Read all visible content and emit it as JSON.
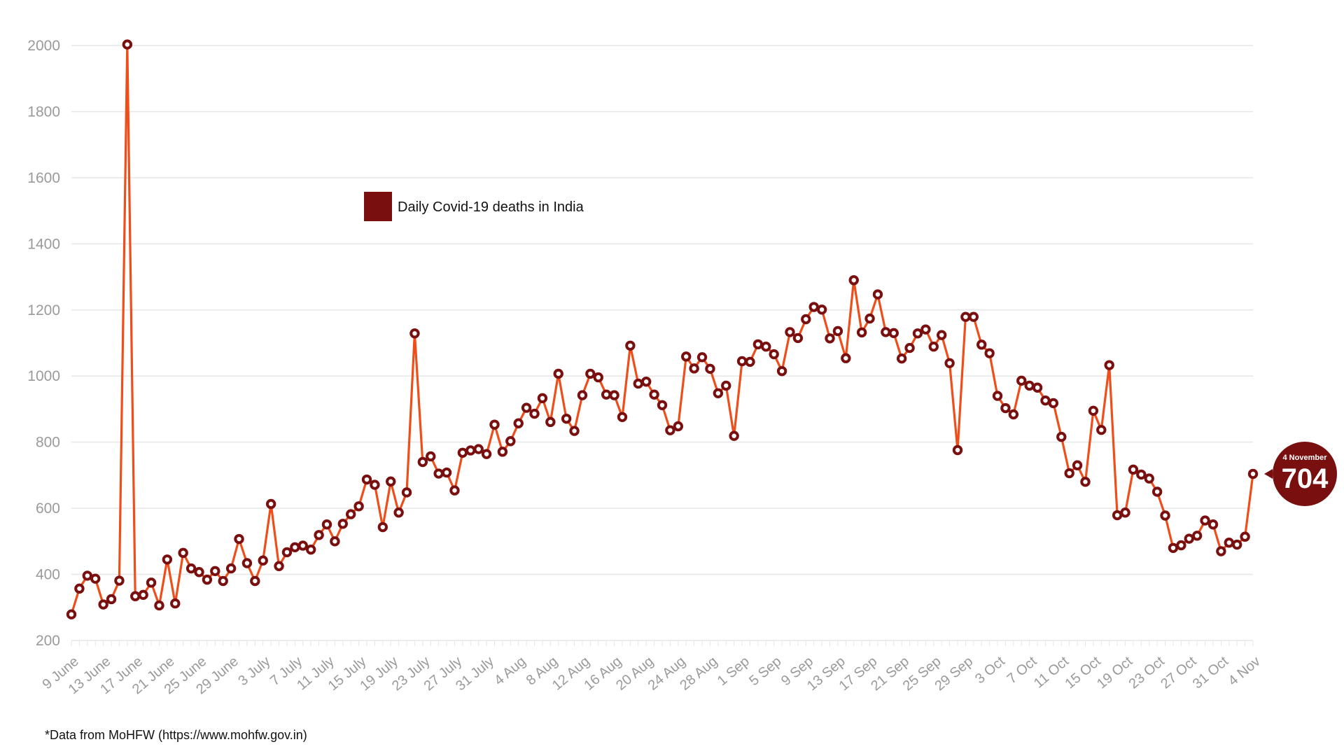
{
  "colors": {
    "line": "#ef4d1a",
    "marker": "#7a0f0f",
    "grid": "#e6e6e6",
    "tick": "#9a9a9a",
    "legend_swatch": "#7a0f0f",
    "callout": "#7a0f0f"
  },
  "source_note": "*Data from MoHFW (https://www.mohfw.gov.in)",
  "chart_data": {
    "type": "line",
    "legend": {
      "label": "Daily Covid-19 deaths in India",
      "placement": "top-center"
    },
    "ylim": [
      200,
      2000
    ],
    "yticks": [
      200,
      400,
      600,
      800,
      1000,
      1200,
      1400,
      1600,
      1800,
      2000
    ],
    "grid": true,
    "x_tick_labels": [
      "9 June",
      "13 June",
      "17 June",
      "21 June",
      "25 June",
      "29 June",
      "3 July",
      "7 July",
      "11 July",
      "15 July",
      "19 July",
      "23 July",
      "27 July",
      "31 July",
      "4 Aug",
      "8 Aug",
      "12 Aug",
      "16 Aug",
      "20 Aug",
      "24 Aug",
      "28 Aug",
      "1 Sep",
      "5 Sep",
      "9 Sep",
      "13 Sep",
      "17 Sep",
      "21 Sep",
      "25 Sep",
      "29 Sep",
      "3 Oct",
      "7 Oct",
      "11 Oct",
      "15 Oct",
      "19 Oct",
      "23 Oct",
      "27 Oct",
      "31 Oct",
      "4 Nov"
    ],
    "x_start": "9 June",
    "x_end": "4 Nov",
    "series": [
      {
        "name": "Daily Covid-19 deaths in India",
        "values": [
          279,
          357,
          396,
          387,
          309,
          325,
          381,
          2003,
          334,
          338,
          375,
          306,
          445,
          312,
          465,
          418,
          407,
          384,
          410,
          380,
          418,
          507,
          434,
          380,
          442,
          613,
          425,
          467,
          482,
          487,
          475,
          519,
          551,
          500,
          553,
          582,
          606,
          687,
          671,
          543,
          681,
          587,
          648,
          1129,
          740,
          757,
          705,
          708,
          654,
          768,
          775,
          779,
          764,
          853,
          771,
          803,
          857,
          904,
          886,
          933,
          861,
          1007,
          871,
          834,
          942,
          1007,
          996,
          944,
          942,
          876,
          1092,
          977,
          983,
          944,
          912,
          836,
          848,
          1059,
          1023,
          1057,
          1022,
          948,
          971,
          819,
          1045,
          1043,
          1096,
          1089,
          1066,
          1015,
          1133,
          1115,
          1172,
          1209,
          1201,
          1114,
          1136,
          1054,
          1290,
          1132,
          1174,
          1247,
          1133,
          1130,
          1053,
          1085,
          1129,
          1141,
          1089,
          1124,
          1039,
          776,
          1179,
          1179,
          1095,
          1069,
          940,
          903,
          884,
          986,
          971,
          965,
          926,
          918,
          816,
          706,
          730,
          680,
          895,
          837,
          1033,
          579,
          587,
          717,
          702,
          690,
          650,
          578,
          480,
          488,
          508,
          517,
          563,
          551,
          470,
          496,
          490,
          514,
          704
        ]
      }
    ],
    "callout": {
      "date_label": "4 November",
      "value_label": "704"
    }
  }
}
